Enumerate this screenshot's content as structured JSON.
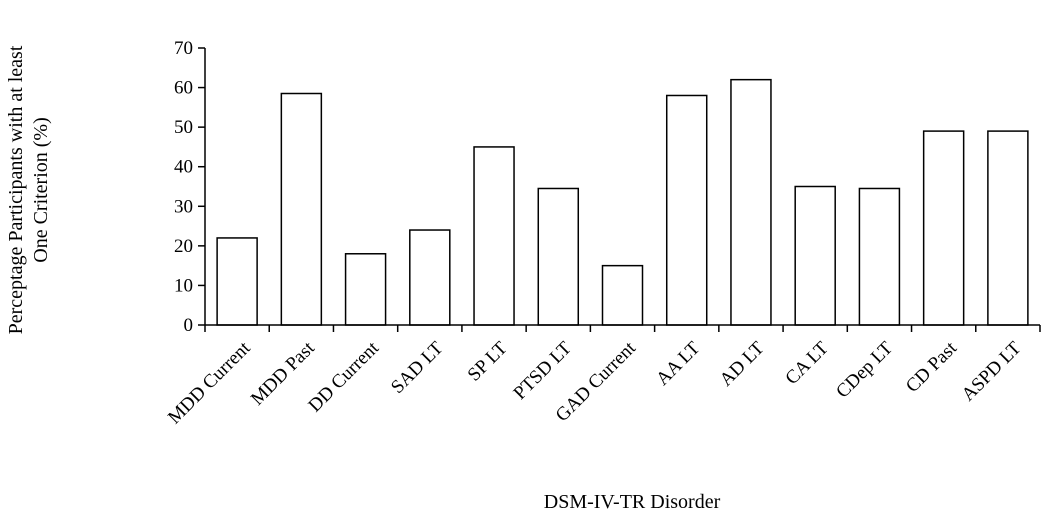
{
  "chart_data": {
    "type": "bar",
    "title": "",
    "xlabel": "DSM-IV-TR Disorder",
    "ylabel_lines": [
      "Perceptage Participants with at least",
      "One Criterion (%)"
    ],
    "categories": [
      "MDD Current",
      "MDD Past",
      "DD Current",
      "SAD LT",
      "SP LT",
      "PTSD LT",
      "GAD Current",
      "AA LT",
      "AD LT",
      "CA LT",
      "CDep LT",
      "CD Past",
      "ASPD LT"
    ],
    "values": [
      22,
      58.5,
      18,
      24,
      45,
      34.5,
      15,
      58,
      62,
      35,
      34.5,
      49,
      49
    ],
    "ylim": [
      0,
      70
    ],
    "yticks": [
      0,
      10,
      20,
      30,
      40,
      50,
      60,
      70
    ],
    "grid": false,
    "legend": "none",
    "colors": {
      "bar_fill": "#ffffff",
      "bar_stroke": "#000000",
      "axis": "#000000"
    }
  }
}
